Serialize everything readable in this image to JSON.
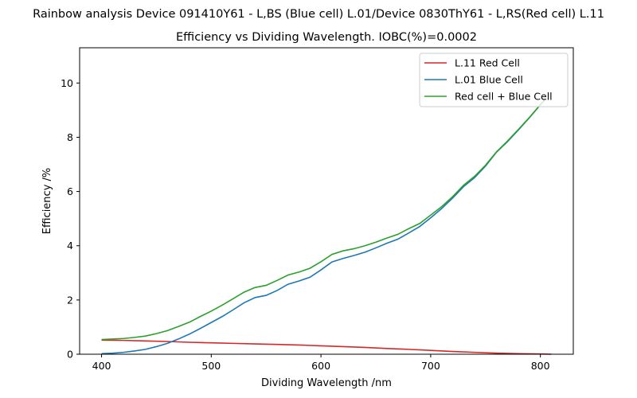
{
  "chart_data": {
    "type": "line",
    "suptitle": "Rainbow analysis Device 091410Y61 - L,BS (Blue cell) L.01/Device 0830ThY61 - L,RS(Red cell) L.11",
    "title": "Efficiency vs Dividing Wavelength. IOBC(%)=0.0002",
    "xlabel": "Dividing Wavelength /nm",
    "ylabel": "Efficiency /%",
    "xlim": [
      380,
      830
    ],
    "ylim": [
      0,
      11.3
    ],
    "xticks": [
      400,
      500,
      600,
      700,
      800
    ],
    "yticks": [
      0,
      2,
      4,
      6,
      8,
      10
    ],
    "grid": false,
    "legend_position": "top-right",
    "series": [
      {
        "name": "L.11 Red Cell",
        "color": "#d62728",
        "x": [
          400,
          420,
          440,
          460,
          480,
          500,
          520,
          540,
          560,
          580,
          600,
          620,
          640,
          660,
          680,
          700,
          720,
          740,
          760,
          780,
          800,
          810
        ],
        "y": [
          0.52,
          0.51,
          0.49,
          0.47,
          0.44,
          0.42,
          0.4,
          0.38,
          0.36,
          0.34,
          0.31,
          0.28,
          0.25,
          0.21,
          0.18,
          0.14,
          0.1,
          0.07,
          0.04,
          0.02,
          0.01,
          0.0
        ]
      },
      {
        "name": "L.01 Blue Cell",
        "color": "#1f77b4",
        "x": [
          400,
          410,
          420,
          430,
          440,
          450,
          460,
          470,
          480,
          490,
          500,
          510,
          520,
          530,
          540,
          550,
          560,
          570,
          580,
          590,
          600,
          610,
          620,
          630,
          640,
          650,
          660,
          670,
          680,
          690,
          700,
          710,
          720,
          730,
          740,
          750,
          760,
          770,
          780,
          790,
          800,
          805
        ],
        "y": [
          0.02,
          0.04,
          0.07,
          0.12,
          0.18,
          0.28,
          0.4,
          0.56,
          0.74,
          0.95,
          1.17,
          1.39,
          1.64,
          1.9,
          2.09,
          2.17,
          2.35,
          2.58,
          2.7,
          2.84,
          3.11,
          3.4,
          3.53,
          3.64,
          3.76,
          3.92,
          4.09,
          4.24,
          4.47,
          4.71,
          5.03,
          5.37,
          5.76,
          6.18,
          6.51,
          6.94,
          7.45,
          7.84,
          8.27,
          8.72,
          9.2,
          9.43
        ]
      },
      {
        "name": "Red cell + Blue Cell",
        "color": "#2ca02c",
        "x": [
          400,
          410,
          420,
          430,
          440,
          450,
          460,
          470,
          480,
          490,
          500,
          510,
          520,
          530,
          540,
          550,
          560,
          570,
          580,
          590,
          600,
          610,
          620,
          630,
          640,
          650,
          660,
          670,
          680,
          690,
          700,
          710,
          720,
          730,
          740,
          750,
          760,
          770,
          780,
          790,
          800,
          805
        ],
        "y": [
          0.54,
          0.56,
          0.58,
          0.62,
          0.67,
          0.76,
          0.87,
          1.02,
          1.18,
          1.39,
          1.59,
          1.81,
          2.05,
          2.29,
          2.46,
          2.54,
          2.72,
          2.92,
          3.03,
          3.17,
          3.41,
          3.68,
          3.81,
          3.89,
          4.0,
          4.13,
          4.28,
          4.42,
          4.63,
          4.82,
          5.13,
          5.44,
          5.81,
          6.23,
          6.56,
          6.97,
          7.46,
          7.86,
          8.29,
          8.73,
          9.2,
          9.43
        ]
      }
    ]
  }
}
